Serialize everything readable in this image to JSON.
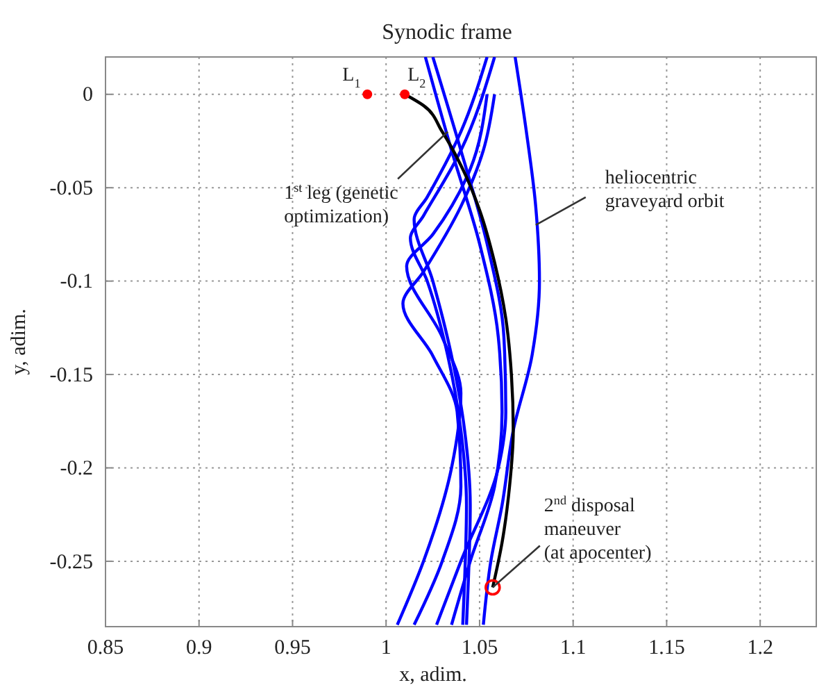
{
  "chart_data": {
    "type": "line",
    "title": "Synodic frame",
    "xlabel": "x, adim.",
    "ylabel": "y, adim.",
    "xlim": [
      0.85,
      1.23
    ],
    "ylim": [
      -0.285,
      0.02
    ],
    "xticks": [
      0.85,
      0.9,
      0.95,
      1,
      1.05,
      1.1,
      1.15,
      1.2
    ],
    "yticks": [
      -0.25,
      -0.2,
      -0.15,
      -0.1,
      -0.05,
      0
    ],
    "grid": true,
    "line_style": "solid",
    "marker": "none",
    "series": [
      {
        "color": "#0000ff",
        "x": [
          1.069,
          1.075,
          1.08,
          1.082,
          1.078,
          1.068,
          1.062,
          1.056,
          1.052
        ],
        "values": [
          0.02,
          -0.02,
          -0.06,
          -0.1,
          -0.14,
          -0.18,
          -0.22,
          -0.25,
          -0.284
        ]
      },
      {
        "color": "#0000ff",
        "x": [
          1.021,
          1.035,
          1.05,
          1.06,
          1.062,
          1.058,
          1.045,
          1.035
        ],
        "values": [
          0.02,
          -0.03,
          -0.08,
          -0.13,
          -0.17,
          -0.21,
          -0.25,
          -0.284
        ]
      },
      {
        "color": "#0000ff",
        "x": [
          1.025,
          1.04,
          1.054,
          1.063,
          1.064,
          1.06,
          1.04,
          1.027
        ],
        "values": [
          0.02,
          -0.03,
          -0.08,
          -0.13,
          -0.17,
          -0.2,
          -0.25,
          -0.284
        ]
      },
      {
        "color": "#0000ff",
        "x": [
          1.054,
          1.04,
          1.022,
          1.015,
          1.025,
          1.035,
          1.042,
          1.045,
          1.044,
          1.043
        ],
        "values": [
          0.02,
          -0.02,
          -0.055,
          -0.067,
          -0.1,
          -0.14,
          -0.18,
          -0.22,
          -0.26,
          -0.284
        ]
      },
      {
        "color": "#0000ff",
        "x": [
          1.058,
          1.04,
          1.02,
          1.013,
          1.022,
          1.033,
          1.04,
          1.043,
          1.042,
          1.041
        ],
        "values": [
          0.02,
          -0.03,
          -0.065,
          -0.077,
          -0.1,
          -0.14,
          -0.18,
          -0.22,
          -0.26,
          -0.284
        ]
      },
      {
        "color": "#0000ff",
        "x": [
          1.006,
          1.02,
          1.035,
          1.04,
          1.03,
          1.011,
          1.025,
          1.045,
          1.054
        ],
        "values": [
          -0.284,
          -0.25,
          -0.2,
          -0.16,
          -0.13,
          -0.092,
          -0.075,
          -0.04,
          0
        ]
      },
      {
        "color": "#0000ff",
        "x": [
          1.015,
          1.03,
          1.04,
          1.038,
          1.025,
          1.009,
          1.02,
          1.04,
          1.052,
          1.058
        ],
        "values": [
          -0.284,
          -0.25,
          -0.21,
          -0.17,
          -0.14,
          -0.112,
          -0.095,
          -0.06,
          -0.03,
          0
        ]
      },
      {
        "color": "#000000",
        "x": [
          1.01,
          1.02,
          1.03,
          1.04,
          1.05,
          1.058,
          1.064,
          1.067,
          1.068,
          1.066,
          1.062,
          1.057
        ],
        "values": [
          0,
          -0.006,
          -0.02,
          -0.038,
          -0.062,
          -0.09,
          -0.12,
          -0.15,
          -0.18,
          -0.21,
          -0.24,
          -0.264
        ]
      },
      {
        "type": "scatter",
        "marker": "circle",
        "color": "#ff0000",
        "x": [
          0.99,
          1.01
        ],
        "values": [
          0,
          0
        ]
      },
      {
        "type": "line",
        "marker": "circle",
        "color": "#ff0000",
        "x": [
          1.057
        ],
        "values": [
          -0.264
        ]
      }
    ],
    "annotations": [
      {
        "text": "L$_{1}$",
        "x": 0.99,
        "y": 0
      },
      {
        "text": "L$_{2}$",
        "x": 1.01,
        "y": 0
      },
      {
        "text": "1$^{st}$ leg (genetic optimization)",
        "x": 1.033,
        "y": -0.02
      },
      {
        "text": "heliocentric graveyard orbit",
        "x": 1.08,
        "y": -0.07
      },
      {
        "text": "2$^{nd}$ disposal maneuver (at apocenter)",
        "x": 1.057,
        "y": -0.264
      }
    ]
  }
}
